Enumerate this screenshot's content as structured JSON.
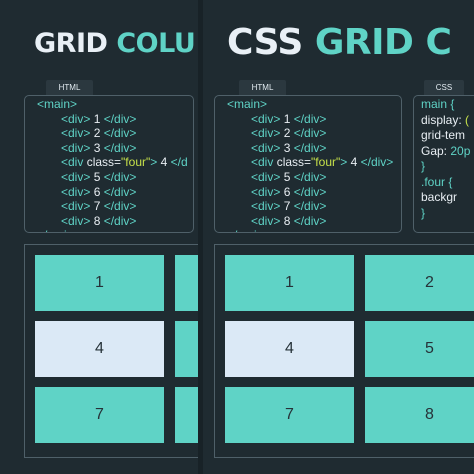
{
  "left": {
    "title_white": "GRID ",
    "title_accent": "COLU",
    "html_tab": "HTML",
    "code": [
      [
        [
          "t",
          "<main>"
        ]
      ],
      [
        [
          "t",
          "<div>"
        ],
        [
          "v",
          " 1 "
        ],
        [
          "t",
          "</div>"
        ]
      ],
      [
        [
          "t",
          "<div>"
        ],
        [
          "v",
          " 2 "
        ],
        [
          "t",
          "</div>"
        ]
      ],
      [
        [
          "t",
          "<div>"
        ],
        [
          "v",
          " 3 "
        ],
        [
          "t",
          "</div>"
        ]
      ],
      [
        [
          "t",
          "<div "
        ],
        [
          "v",
          "class="
        ],
        [
          "s",
          "\"four\""
        ],
        [
          "t",
          ">"
        ],
        [
          "v",
          " 4 "
        ],
        [
          "t",
          "</d"
        ]
      ],
      [
        [
          "t",
          "<div>"
        ],
        [
          "v",
          " 5 "
        ],
        [
          "t",
          "</div>"
        ]
      ],
      [
        [
          "t",
          "<div>"
        ],
        [
          "v",
          " 6 "
        ],
        [
          "t",
          "</div>"
        ]
      ],
      [
        [
          "t",
          "<div>"
        ],
        [
          "v",
          " 7 "
        ],
        [
          "t",
          "</div>"
        ]
      ],
      [
        [
          "t",
          "<div>"
        ],
        [
          "v",
          " 8 "
        ],
        [
          "t",
          "</div>"
        ]
      ],
      [
        [
          "t",
          "</main>"
        ]
      ]
    ],
    "cells": [
      "1",
      "",
      "4",
      "",
      "7",
      ""
    ]
  },
  "right": {
    "title_white": "CSS ",
    "title_accent": "GRID C",
    "html_tab": "HTML",
    "css_tab": "CSS",
    "code": [
      [
        [
          "t",
          "<main>"
        ]
      ],
      [
        [
          "t",
          "<div>"
        ],
        [
          "v",
          " 1 "
        ],
        [
          "t",
          "</div>"
        ]
      ],
      [
        [
          "t",
          "<div>"
        ],
        [
          "v",
          " 2 "
        ],
        [
          "t",
          "</div>"
        ]
      ],
      [
        [
          "t",
          "<div>"
        ],
        [
          "v",
          " 3 "
        ],
        [
          "t",
          "</div>"
        ]
      ],
      [
        [
          "t",
          "<div "
        ],
        [
          "v",
          "class="
        ],
        [
          "s",
          "\"four\""
        ],
        [
          "t",
          ">"
        ],
        [
          "v",
          " 4 "
        ],
        [
          "t",
          "</div>"
        ]
      ],
      [
        [
          "t",
          "<div>"
        ],
        [
          "v",
          " 5 "
        ],
        [
          "t",
          "</div>"
        ]
      ],
      [
        [
          "t",
          "<div>"
        ],
        [
          "v",
          " 6 "
        ],
        [
          "t",
          "</div>"
        ]
      ],
      [
        [
          "t",
          "<div>"
        ],
        [
          "v",
          " 7 "
        ],
        [
          "t",
          "</div>"
        ]
      ],
      [
        [
          "t",
          "<div>"
        ],
        [
          "v",
          " 8 "
        ],
        [
          "t",
          "</div>"
        ]
      ],
      [
        [
          "t",
          "</main>"
        ]
      ]
    ],
    "css": [
      [
        [
          "t",
          "main {"
        ]
      ],
      [
        [
          "v",
          "  display: "
        ],
        [
          "s",
          "("
        ]
      ],
      [
        [
          "v",
          "  grid-tem"
        ]
      ],
      [
        [
          "v",
          "  Gap: "
        ],
        [
          "t",
          "20p"
        ]
      ],
      [
        [
          "t",
          "}"
        ]
      ],
      [
        [
          "t",
          ".four {"
        ]
      ],
      [
        [
          "v",
          "  backgr"
        ]
      ],
      [
        [
          "v",
          ""
        ]
      ],
      [
        [
          "t",
          "}"
        ]
      ]
    ],
    "cells": [
      "1",
      "2",
      "4",
      "5",
      "7",
      "8"
    ]
  },
  "colors": {
    "background": "#1f2b31",
    "accent": "#5fd3c6",
    "cell": "#5fd3c6",
    "cell_four": "#dbe9f6",
    "border": "#4f6069"
  }
}
